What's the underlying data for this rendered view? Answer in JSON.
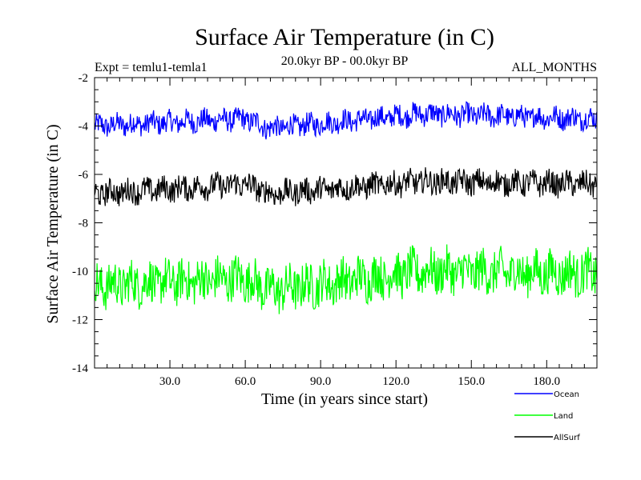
{
  "chart_data": {
    "type": "line",
    "title": "Surface Air Temperature (in C)",
    "subtitle_left": "Expt = temlu1-temla1",
    "subtitle_center": "20.0kyr BP - 00.0kyr BP",
    "subtitle_right": "ALL_MONTHS",
    "xlabel": "Time (in years since start)",
    "ylabel": "Surface Air Temperature (in C)",
    "xlim": [
      0,
      200
    ],
    "ylim": [
      -14,
      -2
    ],
    "x_ticks": [
      30,
      60,
      90,
      120,
      150,
      180
    ],
    "x_tick_labels": [
      "30.0",
      "60.0",
      "90.0",
      "120.0",
      "150.0",
      "180.0"
    ],
    "y_ticks": [
      -14,
      -12,
      -10,
      -8,
      -6,
      -4,
      -2
    ],
    "y_tick_labels": [
      "-14",
      "-12",
      "-10",
      "-8",
      "-6",
      "-4",
      "-2"
    ],
    "series": [
      {
        "name": "Ocean",
        "color": "#0000ff",
        "mean": -3.85,
        "amplitude": 0.45,
        "trend": [
          [
            0,
            -4.0
          ],
          [
            60,
            -3.7
          ],
          [
            70,
            -4.1
          ],
          [
            130,
            -3.5
          ],
          [
            200,
            -3.7
          ]
        ]
      },
      {
        "name": "Land",
        "color": "#00ff00",
        "mean": -10.2,
        "amplitude": 0.9,
        "trend": [
          [
            0,
            -10.6
          ],
          [
            60,
            -10.3
          ],
          [
            70,
            -10.8
          ],
          [
            130,
            -10.0
          ],
          [
            200,
            -10.1
          ]
        ]
      },
      {
        "name": "AllSurf",
        "color": "#000000",
        "mean": -6.45,
        "amplitude": 0.5,
        "trend": [
          [
            0,
            -6.8
          ],
          [
            60,
            -6.4
          ],
          [
            70,
            -6.8
          ],
          [
            130,
            -6.3
          ],
          [
            200,
            -6.4
          ]
        ]
      }
    ],
    "legend_position": "bottom-right"
  }
}
